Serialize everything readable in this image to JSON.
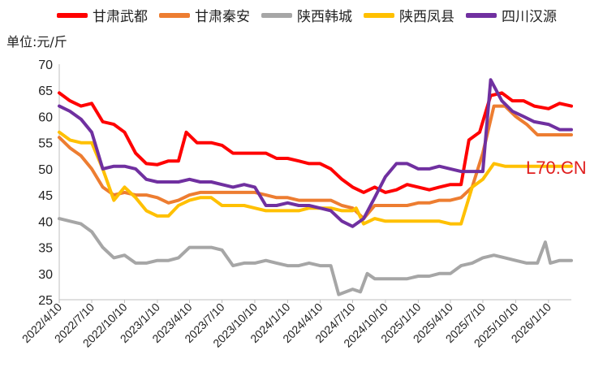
{
  "colors": {
    "axis": "#bfbfbf",
    "tick_text": "#222222",
    "watermark": "#e02020"
  },
  "unit_label": "单位:元/斤",
  "watermark": "L70.CN",
  "chart_data": {
    "type": "line",
    "ylim": [
      25,
      70
    ],
    "yticks": [
      25,
      30,
      35,
      40,
      45,
      50,
      55,
      60,
      65,
      70
    ],
    "xlim": [
      "2022-04-10",
      "2026-03-15"
    ],
    "xticks": [
      "2022/4/10",
      "2022/7/10",
      "2022/10/10",
      "2023/1/10",
      "2023/4/10",
      "2023/7/10",
      "2023/10/10",
      "2024/1/10",
      "2024/4/10",
      "2024/7/10",
      "2024/10/10",
      "2025/1/10",
      "2025/4/10",
      "2025/7/10",
      "2025/10/10",
      "2026/1/10"
    ],
    "grid": false,
    "legend": "top",
    "series": [
      {
        "name": "甘肃武都",
        "color": "#ff0000",
        "points": [
          [
            "2022-04-10",
            64.5
          ],
          [
            "2022-05-10",
            63
          ],
          [
            "2022-06-10",
            62
          ],
          [
            "2022-07-10",
            62.5
          ],
          [
            "2022-08-10",
            59
          ],
          [
            "2022-09-10",
            58.5
          ],
          [
            "2022-10-10",
            57
          ],
          [
            "2022-11-10",
            53
          ],
          [
            "2022-12-10",
            51
          ],
          [
            "2023-01-10",
            50.8
          ],
          [
            "2023-02-10",
            51.5
          ],
          [
            "2023-03-10",
            51.5
          ],
          [
            "2023-04-01",
            57
          ],
          [
            "2023-05-01",
            55
          ],
          [
            "2023-06-10",
            55
          ],
          [
            "2023-07-10",
            54.5
          ],
          [
            "2023-08-10",
            53
          ],
          [
            "2023-09-10",
            53
          ],
          [
            "2023-10-10",
            53
          ],
          [
            "2023-11-10",
            53
          ],
          [
            "2023-12-10",
            52
          ],
          [
            "2024-01-10",
            52
          ],
          [
            "2024-02-10",
            51.5
          ],
          [
            "2024-03-10",
            51
          ],
          [
            "2024-04-10",
            51
          ],
          [
            "2024-05-10",
            50
          ],
          [
            "2024-06-10",
            48
          ],
          [
            "2024-07-10",
            46.5
          ],
          [
            "2024-08-10",
            45.5
          ],
          [
            "2024-09-10",
            46.5
          ],
          [
            "2024-10-10",
            45.5
          ],
          [
            "2024-11-10",
            46
          ],
          [
            "2024-12-10",
            47
          ],
          [
            "2025-01-10",
            46.5
          ],
          [
            "2025-02-10",
            46
          ],
          [
            "2025-03-10",
            46.5
          ],
          [
            "2025-04-10",
            47
          ],
          [
            "2025-05-10",
            47
          ],
          [
            "2025-06-01",
            55.5
          ],
          [
            "2025-07-01",
            57
          ],
          [
            "2025-08-01",
            64
          ],
          [
            "2025-09-01",
            64.5
          ],
          [
            "2025-10-01",
            63
          ],
          [
            "2025-11-01",
            63
          ],
          [
            "2025-12-01",
            62
          ],
          [
            "2026-01-10",
            61.5
          ],
          [
            "2026-02-10",
            62.5
          ],
          [
            "2026-03-15",
            62
          ]
        ]
      },
      {
        "name": "甘肃秦安",
        "color": "#ed7d31",
        "points": [
          [
            "2022-04-10",
            56
          ],
          [
            "2022-05-10",
            54
          ],
          [
            "2022-06-10",
            52.5
          ],
          [
            "2022-07-10",
            50
          ],
          [
            "2022-08-10",
            46.5
          ],
          [
            "2022-09-10",
            45
          ],
          [
            "2022-10-10",
            45.5
          ],
          [
            "2022-11-10",
            45
          ],
          [
            "2022-12-10",
            45
          ],
          [
            "2023-01-10",
            44.5
          ],
          [
            "2023-02-10",
            43.5
          ],
          [
            "2023-03-10",
            44
          ],
          [
            "2023-04-10",
            45
          ],
          [
            "2023-05-10",
            45.5
          ],
          [
            "2023-06-10",
            45.5
          ],
          [
            "2023-07-10",
            45.5
          ],
          [
            "2023-08-10",
            45.5
          ],
          [
            "2023-09-10",
            45.5
          ],
          [
            "2023-10-10",
            45.5
          ],
          [
            "2023-11-10",
            45
          ],
          [
            "2023-12-10",
            44.5
          ],
          [
            "2024-01-10",
            44.5
          ],
          [
            "2024-02-10",
            44
          ],
          [
            "2024-03-10",
            44
          ],
          [
            "2024-04-10",
            44
          ],
          [
            "2024-05-10",
            44
          ],
          [
            "2024-06-10",
            43
          ],
          [
            "2024-07-10",
            42.5
          ],
          [
            "2024-08-10",
            40.5
          ],
          [
            "2024-09-10",
            43
          ],
          [
            "2024-10-10",
            43
          ],
          [
            "2024-11-10",
            43
          ],
          [
            "2024-12-10",
            43
          ],
          [
            "2025-01-10",
            43.5
          ],
          [
            "2025-02-10",
            43.5
          ],
          [
            "2025-03-10",
            44
          ],
          [
            "2025-04-10",
            44
          ],
          [
            "2025-05-10",
            44.5
          ],
          [
            "2025-06-10",
            46.5
          ],
          [
            "2025-07-10",
            53
          ],
          [
            "2025-08-10",
            62
          ],
          [
            "2025-09-10",
            62
          ],
          [
            "2025-10-10",
            60
          ],
          [
            "2025-11-10",
            58.5
          ],
          [
            "2025-12-10",
            56.5
          ],
          [
            "2026-01-10",
            56.5
          ],
          [
            "2026-02-10",
            56.5
          ],
          [
            "2026-03-15",
            56.5
          ]
        ]
      },
      {
        "name": "陕西韩城",
        "color": "#a6a6a6",
        "points": [
          [
            "2022-04-10",
            40.5
          ],
          [
            "2022-05-10",
            40
          ],
          [
            "2022-06-10",
            39.5
          ],
          [
            "2022-07-10",
            38
          ],
          [
            "2022-08-10",
            35
          ],
          [
            "2022-09-10",
            33
          ],
          [
            "2022-10-10",
            33.5
          ],
          [
            "2022-11-10",
            32
          ],
          [
            "2022-12-10",
            32
          ],
          [
            "2023-01-10",
            32.5
          ],
          [
            "2023-02-10",
            32.5
          ],
          [
            "2023-03-10",
            33
          ],
          [
            "2023-04-10",
            35
          ],
          [
            "2023-05-10",
            35
          ],
          [
            "2023-06-10",
            35
          ],
          [
            "2023-07-10",
            34.5
          ],
          [
            "2023-08-10",
            31.5
          ],
          [
            "2023-09-10",
            32
          ],
          [
            "2023-10-10",
            32
          ],
          [
            "2023-11-10",
            32.5
          ],
          [
            "2023-12-10",
            32
          ],
          [
            "2024-01-10",
            31.5
          ],
          [
            "2024-02-10",
            31.5
          ],
          [
            "2024-03-10",
            32
          ],
          [
            "2024-04-10",
            31.5
          ],
          [
            "2024-05-10",
            31.5
          ],
          [
            "2024-06-01",
            26
          ],
          [
            "2024-07-10",
            27
          ],
          [
            "2024-08-01",
            26.5
          ],
          [
            "2024-08-20",
            30
          ],
          [
            "2024-09-10",
            29
          ],
          [
            "2024-10-10",
            29
          ],
          [
            "2024-11-10",
            29
          ],
          [
            "2024-12-10",
            29
          ],
          [
            "2025-01-10",
            29.5
          ],
          [
            "2025-02-10",
            29.5
          ],
          [
            "2025-03-10",
            30
          ],
          [
            "2025-04-10",
            30
          ],
          [
            "2025-05-10",
            31.5
          ],
          [
            "2025-06-10",
            32
          ],
          [
            "2025-07-10",
            33
          ],
          [
            "2025-08-10",
            33.5
          ],
          [
            "2025-09-10",
            33
          ],
          [
            "2025-10-10",
            32.5
          ],
          [
            "2025-11-10",
            32
          ],
          [
            "2025-12-10",
            32
          ],
          [
            "2026-01-01",
            36
          ],
          [
            "2026-01-15",
            32
          ],
          [
            "2026-02-10",
            32.5
          ],
          [
            "2026-03-15",
            32.5
          ]
        ]
      },
      {
        "name": "陕西凤县",
        "color": "#ffc000",
        "points": [
          [
            "2022-04-10",
            57
          ],
          [
            "2022-05-10",
            55.5
          ],
          [
            "2022-06-10",
            55
          ],
          [
            "2022-07-10",
            55
          ],
          [
            "2022-08-10",
            50
          ],
          [
            "2022-09-10",
            44
          ],
          [
            "2022-10-10",
            46.5
          ],
          [
            "2022-11-10",
            44.5
          ],
          [
            "2022-12-10",
            42
          ],
          [
            "2023-01-10",
            41
          ],
          [
            "2023-02-10",
            41
          ],
          [
            "2023-03-10",
            43
          ],
          [
            "2023-04-10",
            44
          ],
          [
            "2023-05-10",
            44.5
          ],
          [
            "2023-06-10",
            44.5
          ],
          [
            "2023-07-10",
            43
          ],
          [
            "2023-08-10",
            43
          ],
          [
            "2023-09-10",
            43
          ],
          [
            "2023-10-10",
            42.5
          ],
          [
            "2023-11-10",
            42
          ],
          [
            "2023-12-10",
            42
          ],
          [
            "2024-01-10",
            42
          ],
          [
            "2024-02-10",
            42
          ],
          [
            "2024-03-10",
            42.5
          ],
          [
            "2024-04-10",
            42.5
          ],
          [
            "2024-05-10",
            42.5
          ],
          [
            "2024-06-10",
            42
          ],
          [
            "2024-07-10",
            42
          ],
          [
            "2024-07-20",
            42.5
          ],
          [
            "2024-08-10",
            39.5
          ],
          [
            "2024-09-10",
            40.5
          ],
          [
            "2024-10-10",
            40
          ],
          [
            "2024-11-10",
            40
          ],
          [
            "2024-12-10",
            40
          ],
          [
            "2025-01-10",
            40
          ],
          [
            "2025-02-10",
            40
          ],
          [
            "2025-03-10",
            40
          ],
          [
            "2025-04-10",
            39.5
          ],
          [
            "2025-05-10",
            39.5
          ],
          [
            "2025-06-10",
            46.5
          ],
          [
            "2025-07-10",
            48
          ],
          [
            "2025-08-10",
            51
          ],
          [
            "2025-09-10",
            50.5
          ],
          [
            "2025-10-10",
            50.5
          ],
          [
            "2025-11-10",
            50.5
          ],
          [
            "2025-12-10",
            50.5
          ],
          [
            "2026-01-10",
            50.5
          ],
          [
            "2026-02-10",
            50.5
          ],
          [
            "2026-03-15",
            50.5
          ]
        ]
      },
      {
        "name": "四川汉源",
        "color": "#7030a0",
        "points": [
          [
            "2022-04-10",
            62
          ],
          [
            "2022-05-10",
            61
          ],
          [
            "2022-06-10",
            59.5
          ],
          [
            "2022-07-10",
            57
          ],
          [
            "2022-08-10",
            50
          ],
          [
            "2022-09-10",
            50.5
          ],
          [
            "2022-10-10",
            50.5
          ],
          [
            "2022-11-10",
            50
          ],
          [
            "2022-12-10",
            48
          ],
          [
            "2023-01-10",
            47.5
          ],
          [
            "2023-02-10",
            47.5
          ],
          [
            "2023-03-10",
            47.5
          ],
          [
            "2023-04-10",
            48
          ],
          [
            "2023-05-10",
            47.5
          ],
          [
            "2023-06-10",
            47.5
          ],
          [
            "2023-07-10",
            47
          ],
          [
            "2023-08-10",
            46.5
          ],
          [
            "2023-09-10",
            47
          ],
          [
            "2023-10-10",
            46.5
          ],
          [
            "2023-11-10",
            43
          ],
          [
            "2023-12-10",
            43
          ],
          [
            "2024-01-10",
            43.5
          ],
          [
            "2024-02-10",
            43
          ],
          [
            "2024-03-10",
            43
          ],
          [
            "2024-04-10",
            42.5
          ],
          [
            "2024-05-10",
            42
          ],
          [
            "2024-06-10",
            40
          ],
          [
            "2024-07-10",
            39
          ],
          [
            "2024-08-10",
            40.5
          ],
          [
            "2024-09-10",
            44.5
          ],
          [
            "2024-10-10",
            48.5
          ],
          [
            "2024-11-10",
            51
          ],
          [
            "2024-12-10",
            51
          ],
          [
            "2025-01-10",
            50
          ],
          [
            "2025-02-10",
            50
          ],
          [
            "2025-03-10",
            50.5
          ],
          [
            "2025-04-10",
            50
          ],
          [
            "2025-05-10",
            49.5
          ],
          [
            "2025-06-10",
            49.5
          ],
          [
            "2025-07-10",
            49.5
          ],
          [
            "2025-08-01",
            67
          ],
          [
            "2025-09-01",
            63
          ],
          [
            "2025-10-01",
            61
          ],
          [
            "2025-11-01",
            60
          ],
          [
            "2025-12-01",
            59
          ],
          [
            "2026-01-10",
            58.5
          ],
          [
            "2026-02-10",
            57.5
          ],
          [
            "2026-03-15",
            57.5
          ]
        ]
      }
    ]
  }
}
